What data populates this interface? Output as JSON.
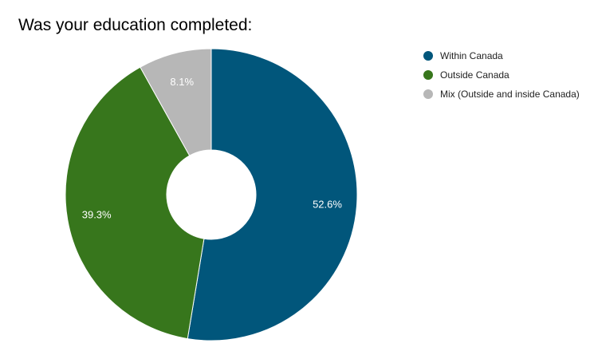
{
  "chart_data": {
    "type": "pie",
    "title": "Was your education completed:",
    "categories": [
      "Within Canada",
      "Outside Canada",
      "Mix (Outside and inside Canada)"
    ],
    "values": [
      52.6,
      39.3,
      8.1
    ],
    "labels": [
      "52.6%",
      "39.3%",
      "8.1%"
    ],
    "colors": [
      "#01567B",
      "#37761C",
      "#B7B7B7"
    ],
    "label_colors": [
      "#ffffff",
      "#ffffff",
      "#ffffff"
    ],
    "donut": true,
    "start_angle_deg": 0,
    "direction": "clockwise",
    "legend": {
      "position": "right",
      "items": [
        "Within Canada",
        "Outside Canada",
        "Mix (Outside and inside Canada)"
      ]
    }
  }
}
